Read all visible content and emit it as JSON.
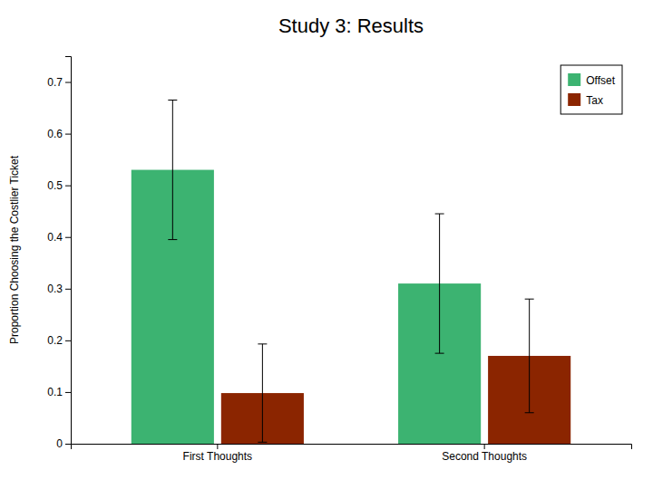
{
  "chart_data": {
    "type": "bar",
    "title": "Study 3: Results",
    "ylabel": "Proportion Choosing the Costlier Ticket",
    "categories": [
      "First Thoughts",
      "Second Thoughts"
    ],
    "series": [
      {
        "name": "Offset",
        "color": "#3CB371",
        "values": [
          0.53,
          0.31
        ],
        "errors": [
          0.135,
          0.135
        ]
      },
      {
        "name": "Tax",
        "color": "#8B2500",
        "values": [
          0.098,
          0.17
        ],
        "errors": [
          0.095,
          0.11
        ]
      }
    ],
    "ylim": [
      0,
      0.75
    ],
    "yticks": [
      0,
      0.1,
      0.2,
      0.3,
      0.4,
      0.5,
      0.6,
      0.7
    ],
    "grid": false,
    "legend": "upper-right"
  }
}
